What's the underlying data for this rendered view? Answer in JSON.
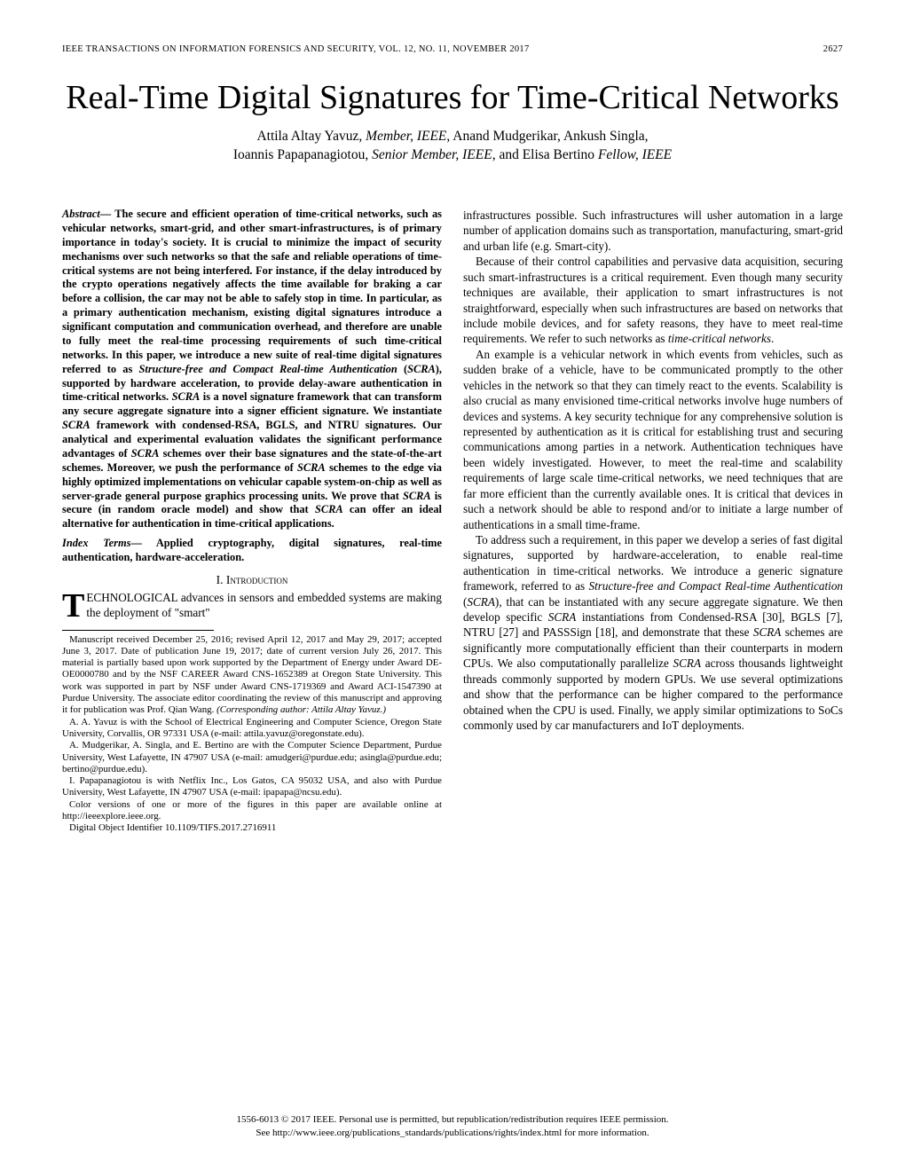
{
  "header": {
    "journal_line": "IEEE TRANSACTIONS ON INFORMATION FORENSICS AND SECURITY, VOL. 12, NO. 11, NOVEMBER 2017",
    "page_number": "2627"
  },
  "title": "Real-Time Digital Signatures for Time-Critical Networks",
  "authors_line1": "Attila Altay Yavuz, ",
  "authors_role1": "Member, IEEE",
  "authors_mid1": ", Anand Mudgerikar, Ankush Singla,",
  "authors_line2": "Ioannis Papapanagiotou, ",
  "authors_role2": "Senior Member, IEEE",
  "authors_mid2": ", and Elisa Bertino ",
  "authors_role3": "Fellow, IEEE",
  "abstract_label": "Abstract",
  "abstract_text": "— The secure and efficient operation of time-critical networks, such as vehicular networks, smart-grid, and other smart-infrastructures, is of primary importance in today's society. It is crucial to minimize the impact of security mechanisms over such networks so that the safe and reliable operations of time-critical systems are not being interfered. For instance, if the delay introduced by the crypto operations negatively affects the time available for braking a car before a collision, the car may not be able to safely stop in time. In particular, as a primary authentication mechanism, existing digital signatures introduce a significant computation and communication overhead, and therefore are unable to fully meet the real-time processing requirements of such time-critical networks. In this paper, we introduce a new suite of real-time digital signatures referred to as ",
  "abstract_em1": "Structure-free and Compact Real-time Authentication",
  "abstract_text2": " (",
  "abstract_em2": "SCRA",
  "abstract_text3": "), supported by hardware acceleration, to provide delay-aware authentication in time-critical networks. ",
  "abstract_em3": "SCRA",
  "abstract_text4": " is a novel signature framework that can transform any secure aggregate signature into a signer efficient signature. We instantiate ",
  "abstract_em4": "SCRA",
  "abstract_text5": " framework with condensed-RSA, BGLS, and NTRU signatures. Our analytical and experimental evaluation validates the significant performance advantages of ",
  "abstract_em5": "SCRA",
  "abstract_text6": " schemes over their base signatures and the state-of-the-art schemes. Moreover, we push the performance of ",
  "abstract_em6": "SCRA",
  "abstract_text7": " schemes to the edge via highly optimized implementations on vehicular capable system-on-chip as well as server-grade general purpose graphics processing units. We prove that ",
  "abstract_em7": "SCRA",
  "abstract_text8": " is secure (in random oracle model) and show that ",
  "abstract_em8": "SCRA",
  "abstract_text9": " can offer an ideal alternative for authentication in time-critical applications.",
  "index_label": "Index Terms",
  "index_text": "— Applied cryptography, digital signatures, real-time authentication, hardware-acceleration.",
  "section1": "I.  Introduction",
  "intro_dropcap": "T",
  "intro_text": "ECHNOLOGICAL advances in sensors and embedded systems are making the deployment of \"smart\"",
  "footnote1": "Manuscript received December 25, 2016; revised April 12, 2017 and May 29, 2017; accepted June 3, 2017. Date of publication June 19, 2017; date of current version July 26, 2017. This material is partially based upon work supported by the Department of Energy under Award DE-OE0000780 and by the NSF CAREER Award CNS-1652389 at Oregon State University. This work was supported in part by NSF under Award CNS-1719369 and Award ACI-1547390 at Purdue University. The associate editor coordinating the review of this manuscript and approving it for publication was Prof. Qian Wang. ",
  "footnote1_em": "(Corresponding author: Attila Altay Yavuz.)",
  "footnote2": "A. A. Yavuz is with the School of Electrical Engineering and Computer Science, Oregon State University, Corvallis, OR 97331 USA (e-mail: attila.yavuz@oregonstate.edu).",
  "footnote3": "A. Mudgerikar, A. Singla, and E. Bertino are with the Computer Science Department, Purdue University, West Lafayette, IN 47907 USA (e-mail: amudgeri@purdue.edu; asingla@purdue.edu; bertino@purdue.edu).",
  "footnote4": "I. Papapanagiotou is with Netflix Inc., Los Gatos, CA 95032 USA, and also with Purdue University, West Lafayette, IN 47907 USA (e-mail: ipapapa@ncsu.edu).",
  "footnote5": "Color versions of one or more of the figures in this paper are available online at http://ieeexplore.ieee.org.",
  "footnote6": "Digital Object Identifier 10.1109/TIFS.2017.2716911",
  "right_p1a": "infrastructures possible. Such infrastructures will usher automation in a large number of application domains such as transportation, manufacturing, smart-grid and urban life (e.g. Smart-city).",
  "right_p2": "Because of their control capabilities and pervasive data acquisition, securing such smart-infrastructures is a critical requirement. Even though many security techniques are available, their application to smart infrastructures is not straightforward, especially when such infrastructures are based on networks that include mobile devices, and for safety reasons, they have to meet real-time requirements. We refer to such networks as ",
  "right_p2_em": "time-critical networks",
  "right_p2_end": ".",
  "right_p3": "An example is a vehicular network in which events from vehicles, such as sudden brake of a vehicle, have to be communicated promptly to the other vehicles in the network so that they can timely react to the events. Scalability is also crucial as many envisioned time-critical networks involve huge numbers of devices and systems. A key security technique for any comprehensive solution is represented by authentication as it is critical for establishing trust and securing communications among parties in a network. Authentication techniques have been widely investigated. However, to meet the real-time and scalability requirements of large scale time-critical networks, we need techniques that are far more efficient than the currently available ones. It is critical that devices in such a network should be able to respond and/or to initiate a large number of authentications in a small time-frame.",
  "right_p4a": "To address such a requirement, in this paper we develop a series of fast digital signatures, supported by hardware-acceleration, to enable real-time authentication in time-critical networks. We introduce a generic signature framework, referred to as ",
  "right_p4_em1": "Structure-free and Compact Real-time Authentication",
  "right_p4b": " (",
  "right_p4_em2": "SCRA",
  "right_p4c": "), that can be instantiated with any secure aggregate signature. We then develop specific ",
  "right_p4_em3": "SCRA",
  "right_p4d": " instantiations from Condensed-RSA [30], BGLS [7], NTRU [27] and PASSSign [18], and demonstrate that these ",
  "right_p4_em4": "SCRA",
  "right_p4e": " schemes are significantly more computationally efficient than their counterparts in modern CPUs. We also computationally parallelize ",
  "right_p4_em5": "SCRA",
  "right_p4f": " across thousands lightweight threads commonly supported by modern GPUs. We use several optimizations and show that the performance can be higher compared to the performance obtained when the CPU is used. Finally, we apply similar optimizations to SoCs commonly used by car manufacturers and IoT deployments.",
  "copyright1": "1556-6013 © 2017 IEEE. Personal use is permitted, but republication/redistribution requires IEEE permission.",
  "copyright2": "See http://www.ieee.org/publications_standards/publications/rights/index.html for more information.",
  "style": {
    "background": "#ffffff",
    "text": "#000000",
    "title_fontsize": 38,
    "body_fontsize": 13.2,
    "abstract_fontsize": 12.4,
    "footnote_fontsize": 10.9,
    "header_fontsize": 10.5,
    "line_height": 1.32
  }
}
